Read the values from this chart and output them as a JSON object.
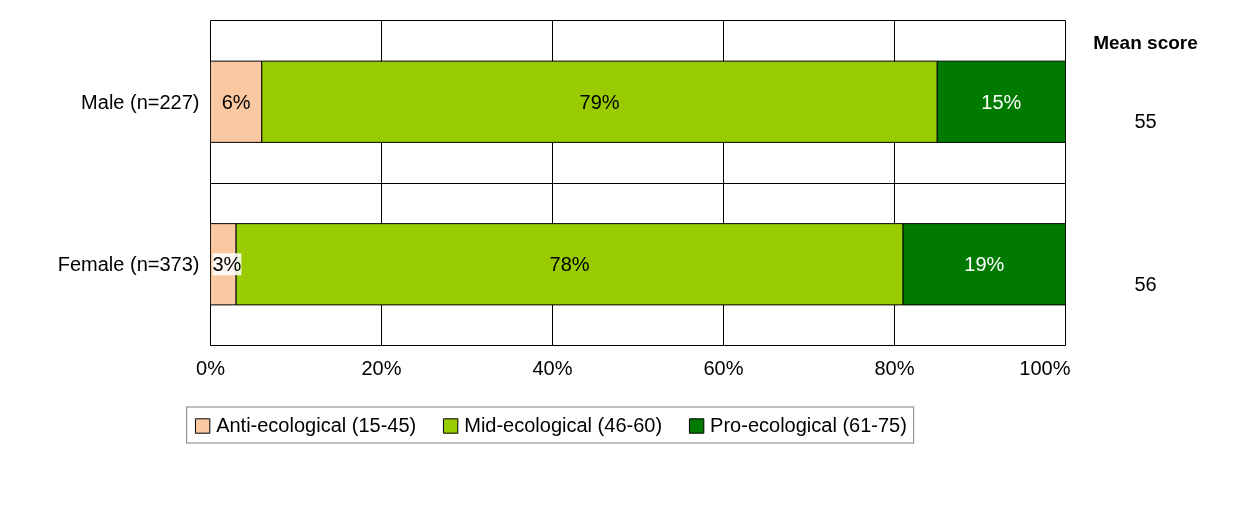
{
  "chart_data": {
    "type": "bar",
    "orientation": "horizontal",
    "stacked": true,
    "categories": [
      "Male (n=227)",
      "Female (n=373)"
    ],
    "series": [
      {
        "name": "Anti-ecological (15-45)",
        "color": "#fac8a0",
        "values": [
          6,
          3
        ],
        "value_labels": [
          "6%",
          "3%"
        ]
      },
      {
        "name": "Mid-ecological (46-60)",
        "color": "#99cc00",
        "values": [
          79,
          78
        ],
        "value_labels": [
          "79%",
          "78%"
        ]
      },
      {
        "name": "Pro-ecological (61-75)",
        "color": "#007a00",
        "values": [
          15,
          19
        ],
        "value_labels": [
          "15%",
          "19%"
        ]
      }
    ],
    "xlim": [
      0,
      100
    ],
    "xticks": [
      {
        "value": 0,
        "label": "0%"
      },
      {
        "value": 20,
        "label": "20%"
      },
      {
        "value": 40,
        "label": "40%"
      },
      {
        "value": 60,
        "label": "60%"
      },
      {
        "value": 80,
        "label": "80%"
      },
      {
        "value": 100,
        "label": "100%"
      }
    ],
    "grid": true,
    "legend": "bottom",
    "annotations": [
      "Mean score",
      "55",
      "56"
    ]
  }
}
